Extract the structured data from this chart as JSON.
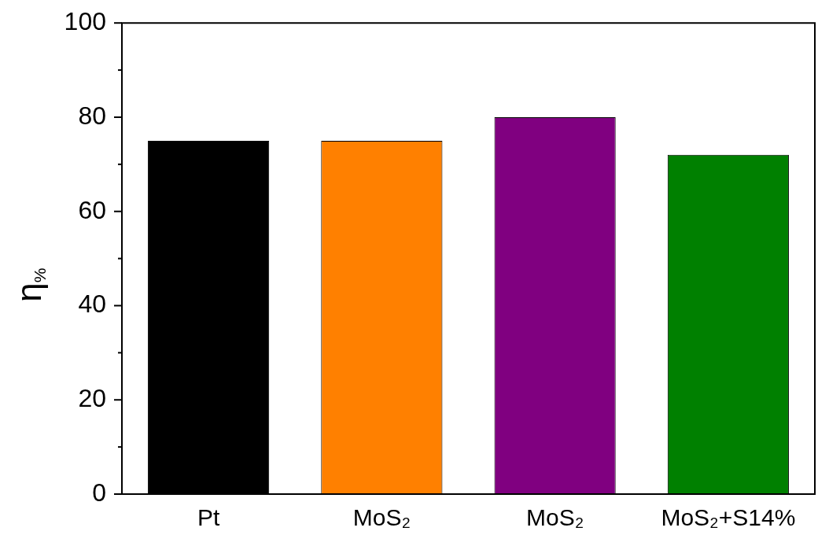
{
  "chart_data": {
    "type": "bar",
    "ylabel": "η$_{%}$",
    "categories": [
      "Pt",
      "MoS₂",
      "MoS₂",
      "MoS₂+S14%"
    ],
    "values": [
      75,
      75,
      80,
      72
    ],
    "colors": [
      "#000000",
      "#ff8000",
      "#800080",
      "#008000"
    ],
    "ylim": [
      0,
      100
    ],
    "yticks": [
      0,
      {
        "value": 10,
        "label": null
      },
      20,
      {
        "value": 30,
        "label": null
      },
      40,
      {
        "value": 50,
        "label": null
      },
      60,
      {
        "value": 70,
        "label": null
      },
      80,
      {
        "value": 90,
        "label": null
      },
      100
    ]
  }
}
